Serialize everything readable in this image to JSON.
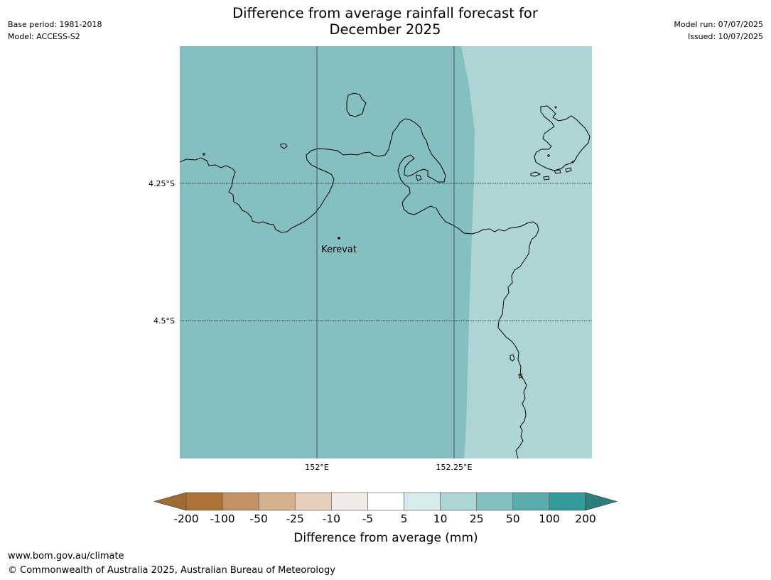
{
  "header": {
    "title_line1": "Difference from average rainfall forecast for",
    "title_line2": "December 2025",
    "base_period": "Base period: 1981-2018",
    "model": "Model: ACCESS-S2",
    "model_run": "Model run: 07/07/2025",
    "issued": "Issued: 10/07/2025"
  },
  "map": {
    "place_label": "Kerevat",
    "lat_labels": [
      "4.25°S",
      "4.5°S"
    ],
    "lon_labels": [
      "152°E",
      "152.25°E"
    ],
    "colors": {
      "west_zone": "#86bfbf",
      "east_zone": "#aed5d5",
      "coastline": "#000000",
      "gridline": "#000000"
    },
    "zones": [
      {
        "category": "25 to 50 mm",
        "color": "#86bfbf"
      },
      {
        "category": "10 to 25 mm",
        "color": "#aed5d5"
      }
    ]
  },
  "legend": {
    "label": "Difference from average (mm)",
    "ticks": [
      "-200",
      "-100",
      "-50",
      "-25",
      "-10",
      "-5",
      "5",
      "10",
      "25",
      "50",
      "100",
      "200"
    ],
    "segment_colors": [
      "#ad7337",
      "#c29166",
      "#d4b08e",
      "#e4d0bc",
      "#f0ebe6",
      "#ffffff",
      "#d8ebeb",
      "#aed5d5",
      "#86bfbf",
      "#5aabab",
      "#339b99"
    ],
    "under_color": "#a06a34",
    "over_color": "#2b7e7c"
  },
  "footer": {
    "url": "www.bom.gov.au/climate",
    "copyright": "© Commonwealth of Australia 2025, Australian Bureau of Meteorology"
  }
}
